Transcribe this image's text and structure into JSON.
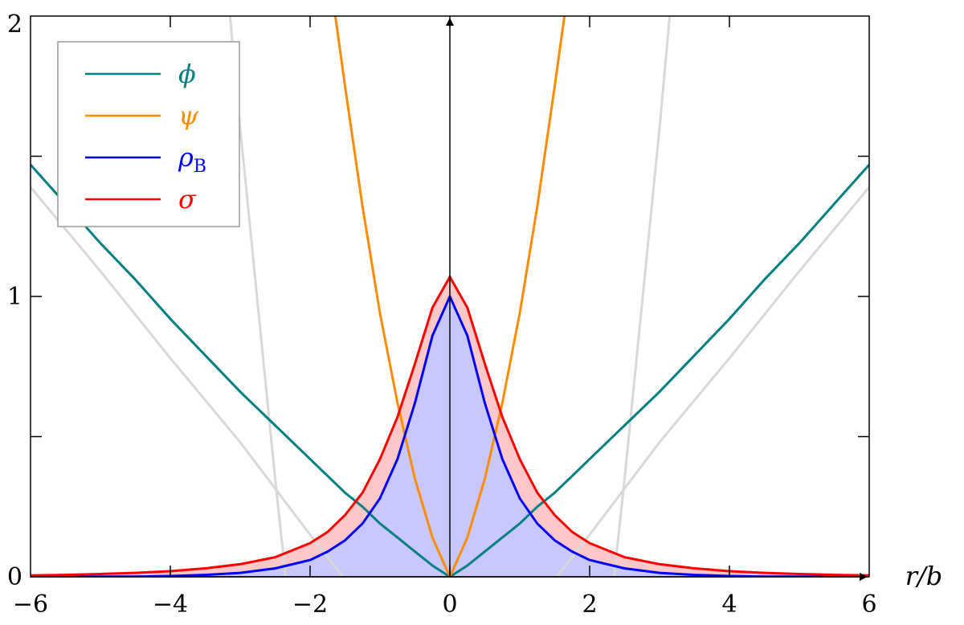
{
  "chart_data": {
    "type": "line",
    "title": "",
    "xlabel": "r/b",
    "ylabel": "",
    "xlim": [
      -6,
      6
    ],
    "ylim": [
      0,
      2
    ],
    "x_ticks": [
      -6,
      -4,
      -2,
      0,
      2,
      4,
      6
    ],
    "x_tick_labels": [
      "−6",
      "−4",
      "−2",
      "0",
      "2",
      "4",
      "6"
    ],
    "y_ticks": [
      0,
      0.5,
      1,
      1.5,
      2
    ],
    "y_tick_labels": [
      "0",
      "",
      "1",
      "",
      "2"
    ],
    "grid": false,
    "legend_position": "top-left",
    "x": [
      -6,
      -5.5,
      -5,
      -4.5,
      -4,
      -3.5,
      -3,
      -2.5,
      -2,
      -1.75,
      -1.5,
      -1.25,
      -1,
      -0.75,
      -0.5,
      -0.25,
      0,
      0.25,
      0.5,
      0.75,
      1,
      1.25,
      1.5,
      1.75,
      2,
      2.5,
      3,
      3.5,
      4,
      4.5,
      5,
      5.5,
      6
    ],
    "series": [
      {
        "name": "ϕ",
        "color": "#008080",
        "values": [
          1.47,
          1.33,
          1.19,
          1.06,
          0.92,
          0.79,
          0.66,
          0.54,
          0.42,
          0.36,
          0.3,
          0.25,
          0.19,
          0.14,
          0.09,
          0.04,
          0.0,
          0.04,
          0.09,
          0.14,
          0.19,
          0.25,
          0.3,
          0.36,
          0.42,
          0.54,
          0.66,
          0.79,
          0.92,
          1.06,
          1.19,
          1.33,
          1.47
        ]
      },
      {
        "name": "ψ",
        "color": "#ff8c00",
        "values": [
          null,
          null,
          null,
          null,
          null,
          null,
          null,
          null,
          null,
          2.2,
          1.75,
          1.32,
          0.94,
          0.62,
          0.35,
          0.14,
          0.0,
          0.14,
          0.35,
          0.62,
          0.94,
          1.32,
          1.75,
          2.2,
          null,
          null,
          null,
          null,
          null,
          null,
          null,
          null,
          null
        ]
      },
      {
        "name": "ρ",
        "name_subscript": "B",
        "color": "#0000ff",
        "fill": "#c8c8ff",
        "values": [
          0.0,
          0.0,
          0.001,
          0.001,
          0.003,
          0.007,
          0.014,
          0.03,
          0.06,
          0.09,
          0.13,
          0.19,
          0.28,
          0.42,
          0.62,
          0.86,
          1.0,
          0.86,
          0.62,
          0.42,
          0.28,
          0.19,
          0.13,
          0.09,
          0.06,
          0.03,
          0.014,
          0.007,
          0.003,
          0.001,
          0.001,
          0.0,
          0.0
        ]
      },
      {
        "name": "σ",
        "color": "#ff0000",
        "fill": "#ffc8c8",
        "values": [
          0.005,
          0.007,
          0.01,
          0.014,
          0.02,
          0.03,
          0.045,
          0.07,
          0.12,
          0.16,
          0.22,
          0.3,
          0.42,
          0.57,
          0.76,
          0.96,
          1.07,
          0.96,
          0.76,
          0.57,
          0.42,
          0.3,
          0.22,
          0.16,
          0.12,
          0.07,
          0.045,
          0.03,
          0.02,
          0.014,
          0.01,
          0.007,
          0.005
        ]
      }
    ],
    "background_curves": [
      {
        "color": "#d9d9d9",
        "x": [
          -6,
          -5,
          -4,
          -3,
          -2,
          -1.53,
          1.53,
          2,
          3,
          4,
          5,
          6
        ],
        "values": [
          1.39,
          1.09,
          0.78,
          0.48,
          0.15,
          0.0,
          0.0,
          0.15,
          0.48,
          0.78,
          1.09,
          1.39
        ]
      },
      {
        "color": "#d9d9d9",
        "x": [
          -3.2,
          -3.0,
          -2.8,
          -2.6,
          -2.5,
          -2.35,
          2.35,
          2.5,
          2.6,
          2.8,
          3.0,
          3.2
        ],
        "values": [
          2.15,
          1.6,
          1.1,
          0.6,
          0.35,
          0.0,
          0.0,
          0.35,
          0.6,
          1.1,
          1.6,
          2.15
        ]
      }
    ]
  }
}
